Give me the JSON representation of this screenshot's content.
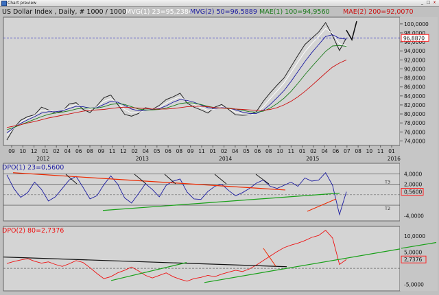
{
  "window": {
    "title": "Chart preview",
    "buttons": {
      "minimize": "_",
      "maximize": "□",
      "close": "x"
    }
  },
  "header": {
    "symbol": "US Dollar Index , Daily, # 1000 / 1000",
    "indicators": [
      {
        "text": "MVG(1) 23=95,2384",
        "color": "#ffffff"
      },
      {
        "text": "MVG(2) 50=96,5889",
        "color": "#1a1aa0"
      },
      {
        "text": "MAE(1) 100=94,9560",
        "color": "#1a7a1a"
      },
      {
        "text": "MAE(2) 200=92,0070",
        "color": "#cc1010"
      }
    ]
  },
  "colors": {
    "plot_bg": "#d4d4d4",
    "price": "#222222",
    "mvg1": "#ffffff",
    "mvg2": "#1a1aa0",
    "mae1": "#1a7a1a",
    "mae2": "#cc1010",
    "dpo1": "#1a1aa0",
    "dpo2": "#ee1010",
    "trend_red": "#ee2a00",
    "trend_green": "#18a018",
    "trend_black": "#111111",
    "marker_box": "#ff2020",
    "grid": "#999999"
  },
  "chart_data": [
    {
      "type": "line",
      "panel": "price",
      "x_labels": [
        "09",
        "10",
        "12",
        "01",
        "02",
        "04",
        "06",
        "08",
        "09",
        "11",
        "12",
        "02",
        "04",
        "05",
        "06",
        "08",
        "09",
        "11",
        "01",
        "02",
        "04",
        "05",
        "06",
        "08",
        "10",
        "11",
        "01",
        "02",
        "04",
        "06",
        "07",
        "08",
        "10",
        "11",
        "01"
      ],
      "year_labels": [
        "2012",
        "2013",
        "2014",
        "2015",
        "2016"
      ],
      "y_ticks": [
        74,
        76,
        78,
        80,
        82,
        84,
        86,
        88,
        90,
        92,
        94,
        96,
        98,
        100
      ],
      "y_tick_labels": [
        "74,0000",
        "76,0000",
        "78,0000",
        "80,0000",
        "82,0000",
        "84,0000",
        "86,0000",
        "88,0000",
        "90,0000",
        "92,0000",
        "94,0000",
        "96,0000",
        "98,0000",
        "100,0000"
      ],
      "ylim": [
        73,
        101.5
      ],
      "last_value": 96.887,
      "last_value_label": "96,8870",
      "series": [
        {
          "name": "Price",
          "values": [
            74.2,
            76.8,
            78.6,
            79.4,
            79.8,
            81.5,
            80.9,
            80.2,
            80.6,
            82.2,
            82.5,
            81.0,
            80.3,
            81.8,
            83.6,
            84.2,
            82.1,
            79.9,
            79.5,
            80.1,
            81.4,
            81.0,
            81.9,
            83.2,
            83.8,
            84.6,
            82.4,
            81.5,
            80.9,
            80.2,
            81.5,
            82.1,
            81.0,
            79.8,
            79.7,
            79.8,
            80.5,
            82.8,
            84.7,
            86.4,
            88.0,
            90.5,
            93.0,
            95.4,
            96.8,
            98.2,
            100.3,
            97.4,
            94.1,
            96.9
          ]
        },
        {
          "name": "MVG(1) 23",
          "values": [
            75.2,
            76.8,
            78.2,
            79.1,
            79.7,
            80.8,
            80.8,
            80.5,
            80.8,
            81.6,
            82.1,
            81.5,
            81.0,
            81.6,
            82.8,
            83.4,
            82.5,
            81.0,
            80.2,
            80.3,
            80.8,
            81.0,
            81.4,
            82.4,
            83.2,
            83.8,
            82.9,
            82.1,
            81.4,
            80.8,
            81.1,
            81.6,
            81.2,
            80.4,
            80.0,
            79.8,
            80.2,
            81.6,
            83.4,
            85.1,
            86.9,
            89.2,
            91.5,
            93.8,
            95.6,
            97.2,
            99.0,
            97.9,
            95.6,
            95.2
          ]
        },
        {
          "name": "MVG(2) 50",
          "values": [
            75.8,
            76.9,
            77.9,
            78.7,
            79.4,
            80.2,
            80.5,
            80.5,
            80.7,
            81.2,
            81.7,
            81.6,
            81.3,
            81.4,
            82.1,
            82.8,
            82.6,
            81.9,
            81.1,
            80.7,
            80.8,
            81.0,
            81.2,
            81.8,
            82.6,
            83.2,
            83.0,
            82.6,
            82.0,
            81.4,
            81.2,
            81.4,
            81.3,
            80.9,
            80.4,
            80.1,
            80.1,
            80.8,
            82.1,
            83.6,
            85.2,
            87.2,
            89.4,
            91.6,
            93.6,
            95.4,
            97.2,
            97.6,
            96.8,
            96.6
          ]
        },
        {
          "name": "MAE(1) 100",
          "values": [
            76.5,
            77.0,
            77.6,
            78.2,
            78.8,
            79.4,
            79.9,
            80.2,
            80.4,
            80.7,
            81.1,
            81.3,
            81.3,
            81.3,
            81.6,
            82.1,
            82.3,
            82.1,
            81.6,
            81.1,
            80.9,
            80.9,
            81.0,
            81.3,
            81.8,
            82.3,
            82.5,
            82.4,
            82.1,
            81.7,
            81.4,
            81.3,
            81.3,
            81.1,
            80.8,
            80.5,
            80.4,
            80.6,
            81.3,
            82.3,
            83.5,
            85.0,
            86.8,
            88.7,
            90.5,
            92.2,
            93.9,
            95.1,
            95.2,
            95.0
          ]
        },
        {
          "name": "MAE(2) 200",
          "values": [
            77.0,
            77.3,
            77.6,
            78.0,
            78.3,
            78.7,
            79.1,
            79.4,
            79.7,
            80.0,
            80.3,
            80.6,
            80.8,
            80.9,
            81.0,
            81.2,
            81.4,
            81.5,
            81.4,
            81.3,
            81.2,
            81.1,
            81.1,
            81.1,
            81.2,
            81.4,
            81.6,
            81.7,
            81.7,
            81.6,
            81.4,
            81.3,
            81.2,
            81.1,
            81.0,
            80.9,
            80.8,
            80.8,
            81.0,
            81.4,
            82.0,
            82.8,
            83.8,
            85.0,
            86.3,
            87.7,
            89.1,
            90.4,
            91.3,
            92.0
          ]
        }
      ]
    },
    {
      "type": "line",
      "panel": "dpo1",
      "title": "DPO(1) 23=0,5600",
      "y_ticks": [
        4,
        2,
        0,
        -2,
        -4
      ],
      "y_tick_labels": [
        "4,0000",
        "2,0000",
        "0,5600",
        "",
        "-4,0000"
      ],
      "band_labels": [
        "T3",
        "T2"
      ],
      "ylim": [
        -5,
        6
      ],
      "last_value": 0.56,
      "series": [
        {
          "name": "DPO(1) 23",
          "values": [
            3.8,
            1.2,
            -0.5,
            0.4,
            2.4,
            1.0,
            -1.2,
            -0.4,
            1.2,
            2.8,
            3.5,
            1.4,
            -0.8,
            -0.2,
            1.9,
            3.6,
            2.0,
            -0.6,
            -1.6,
            0.2,
            2.1,
            1.0,
            -0.4,
            1.8,
            2.6,
            3.0,
            0.5,
            -0.8,
            -0.9,
            0.6,
            1.6,
            2.0,
            0.8,
            -0.2,
            0.4,
            1.2,
            2.2,
            2.8,
            1.6,
            1.2,
            1.8,
            2.4,
            1.6,
            3.2,
            2.6,
            2.8,
            4.2,
            1.8,
            -3.8,
            0.56
          ]
        }
      ]
    },
    {
      "type": "line",
      "panel": "dpo2",
      "title": "DPO(2) 80=2,7376",
      "y_ticks": [
        10,
        5,
        0,
        -5
      ],
      "y_tick_labels": [
        "10,0000",
        "5,0000",
        "2,7376",
        "-5,0000"
      ],
      "ylim": [
        -7,
        13
      ],
      "last_value": 2.7376,
      "series": [
        {
          "name": "DPO(2) 80",
          "values": [
            1.5,
            2.1,
            2.6,
            3.0,
            2.2,
            1.6,
            2.0,
            1.2,
            0.6,
            1.4,
            2.4,
            1.8,
            0.2,
            -1.6,
            -3.2,
            -2.6,
            -1.4,
            -0.6,
            0.4,
            -0.8,
            -2.2,
            -3.0,
            -2.2,
            -1.4,
            -2.6,
            -3.4,
            -4.0,
            -3.2,
            -2.8,
            -2.2,
            -2.6,
            -1.8,
            -1.2,
            -0.6,
            -1.0,
            -0.2,
            1.0,
            2.4,
            3.8,
            5.2,
            6.4,
            7.2,
            7.8,
            8.6,
            9.6,
            10.2,
            11.8,
            9.4,
            1.2,
            2.74
          ]
        }
      ]
    }
  ]
}
